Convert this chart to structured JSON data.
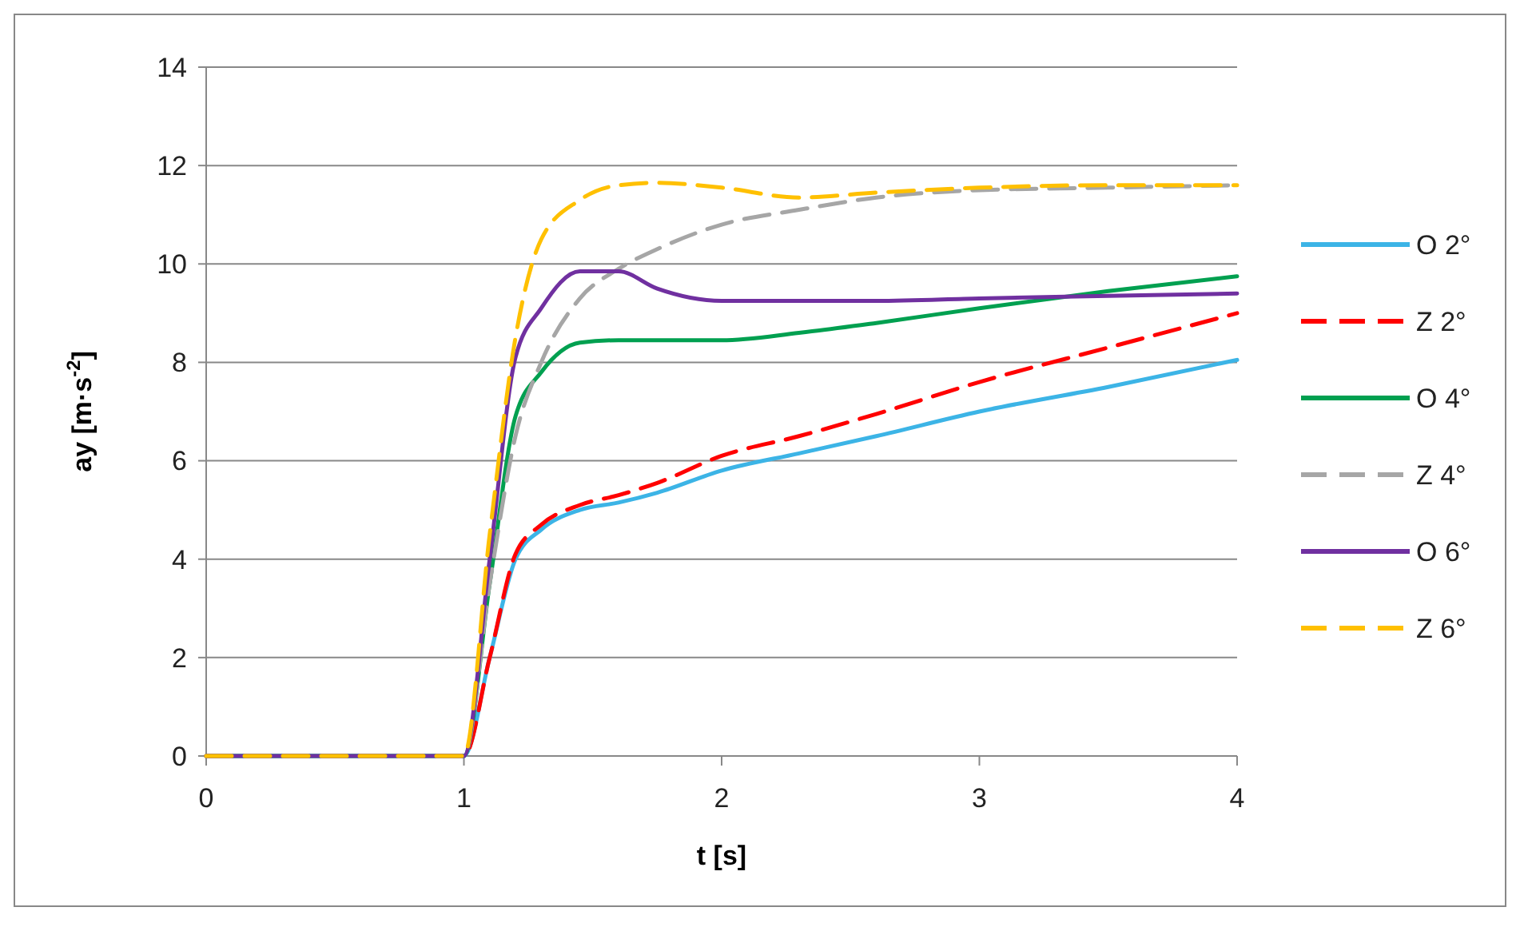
{
  "chart_data": {
    "type": "line",
    "xlabel": "t [s]",
    "ylabel": "ay [m·s$^{-2}$]",
    "x": [
      0,
      1,
      1.1,
      1.2,
      1.3,
      1.45,
      1.6,
      1.75,
      2,
      2.3,
      2.6,
      3,
      3.5,
      4
    ],
    "xlim": [
      0,
      4
    ],
    "xticks": [
      0,
      1,
      2,
      3,
      4
    ],
    "ylim": [
      0,
      14
    ],
    "yticks": [
      0,
      2,
      4,
      6,
      8,
      10,
      12,
      14
    ],
    "grid": "y",
    "legend": "right",
    "marker": "none",
    "series": [
      {
        "name": "O 2°",
        "color": "#3cb4e6",
        "line_style": "solid",
        "values": [
          0,
          0,
          2,
          4,
          4.6,
          5,
          5.15,
          5.35,
          5.8,
          6.15,
          6.5,
          7,
          7.5,
          8.05
        ]
      },
      {
        "name": "Z 2°",
        "color": "#ff0000",
        "line_style": "dashed",
        "values": [
          0,
          0,
          2,
          4.1,
          4.7,
          5.1,
          5.3,
          5.55,
          6.1,
          6.5,
          6.95,
          7.6,
          8.3,
          9
        ]
      },
      {
        "name": "O 4°",
        "color": "#00a050",
        "line_style": "solid",
        "values": [
          0,
          0,
          3.5,
          6.9,
          7.8,
          8.4,
          8.45,
          8.45,
          8.45,
          8.6,
          8.8,
          9.1,
          9.45,
          9.75
        ]
      },
      {
        "name": "Z 4°",
        "color": "#a6a6a6",
        "line_style": "dashed",
        "values": [
          0,
          0,
          3.5,
          6.5,
          8,
          9.3,
          9.9,
          10.3,
          10.8,
          11.1,
          11.35,
          11.5,
          11.55,
          11.6
        ]
      },
      {
        "name": "O 6°",
        "color": "#7030a0",
        "line_style": "solid",
        "values": [
          0,
          0,
          4,
          8.1,
          9.1,
          9.85,
          9.85,
          9.5,
          9.25,
          9.25,
          9.25,
          9.3,
          9.35,
          9.4
        ]
      },
      {
        "name": "Z 6°",
        "color": "#ffc000",
        "line_style": "dashed",
        "values": [
          0,
          0,
          4.5,
          8.5,
          10.5,
          11.3,
          11.6,
          11.65,
          11.55,
          11.35,
          11.45,
          11.55,
          11.6,
          11.6
        ]
      }
    ]
  }
}
